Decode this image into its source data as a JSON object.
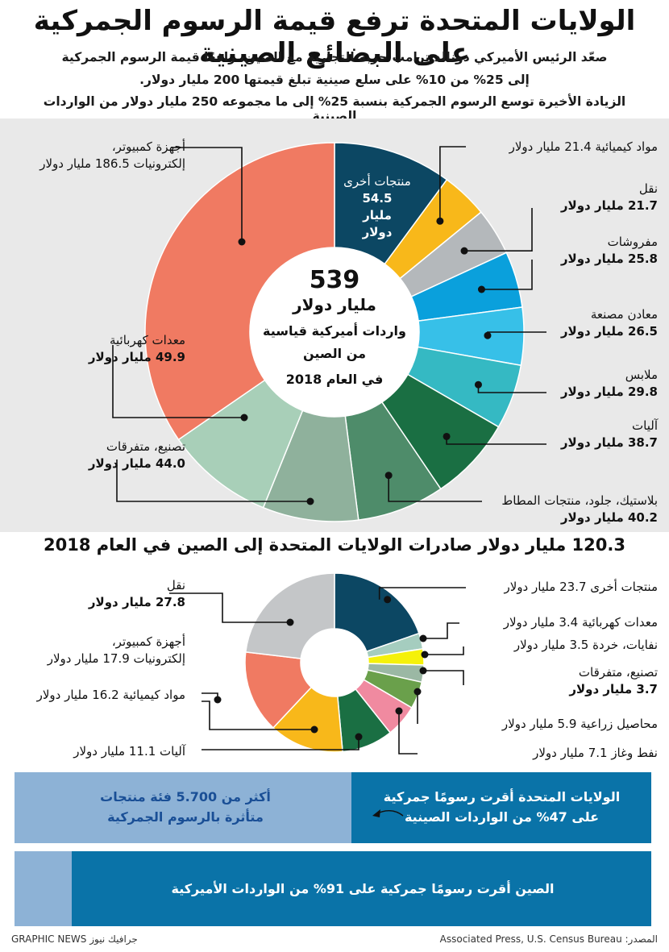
{
  "title": "الولايات المتحدة ترفع قيمة الرسوم الجمركية على البضائع الصينية",
  "subtitle_1": "صعّد الرئيس الأميركي دونالد ترامب حربه التجارية مع الصين، رافعًا قيمة الرسوم الجمركية",
  "subtitle_2": "إلى 25% من 10% على سلع صينية تبلغ قيمتها 200 مليار دولار.",
  "subtitle_3": "الزيادة الأخيرة توسع الرسوم الجمركية بنسبة 25% إلى ما مجموعه 250 مليار دولار من الواردات الصينية",
  "imports_center": {
    "value": "539",
    "unit": "مليار دولار",
    "line1": "واردات أميركية قياسية",
    "line2": "من الصين",
    "line3": "في العام 2018"
  },
  "exports_title": "120.3 مليار دولار صادرات الولايات المتحدة إلى الصين في العام 2018",
  "imports_labels": {
    "other_name": "منتجات أخرى",
    "other_value": "54.5",
    "other_unit": "مليار",
    "other_unit2": "دولار",
    "chemicals_line": "مواد كيميائية 21.4 مليار دولار",
    "transport_name": "نقل",
    "transport_value": "21.7 مليار دولار",
    "furniture_name": "مفروشات",
    "furniture_value": "25.8 مليار دولار",
    "metals_name": "معادن مصنعة",
    "metals_value": "26.5 مليار دولار",
    "clothing_name": "ملابس",
    "clothing_value": "29.8 مليار دولار",
    "machinery_name": "آليات",
    "machinery_value": "38.7 مليار دولار",
    "plastics_name": "بلاستيك، جلود، منتجات المطاط",
    "plastics_value": "40.2 مليار دولار",
    "computers_name1": "أجهزة كمبيوتر،",
    "computers_line2": "إلكترونيات 186.5 مليار دولار",
    "electrical_name": "معدات كهربائية",
    "electrical_value": "49.9 مليار دولار",
    "manufacturing_name": "تصنيع، متفرقات",
    "manufacturing_value": "44.0 مليار دولار"
  },
  "exports_labels": {
    "other_line": "منتجات أخرى 23.7 مليار دولار",
    "electrical_line": "معدات كهربائية 3.4 مليار دولار",
    "waste_line": "نفايات، خردة 3.5 مليار دولار",
    "manufacturing_name": "تصنيع، متفرقات",
    "manufacturing_value": "3.7 مليار دولار",
    "agri_line": "محاصيل زراعية 5.9 مليار دولار",
    "oil_line": "نفط وغاز 7.1 مليار دولار",
    "transport_name": "نقل",
    "transport_value": "27.8 مليار دولار",
    "computers_name1": "أجهزة كمبيوتر،",
    "computers_line2": "إلكترونيات 17.9 مليار دولار",
    "chemicals_line": "مواد كيميائية 16.2 مليار دولار",
    "machinery_line": "آليات 11.1 مليار دولار"
  },
  "bar1": {
    "dark_line1": "الولايات المتحدة أقرت رسومًا جمركية",
    "dark_line2": "على 47% من الواردات الصينية",
    "light_line1": "أكثر من 5.700 فئة منتجات",
    "light_line2": "متأثرة بالرسوم الجمركية",
    "share": 0.47
  },
  "bar2": {
    "text": "الصين أقرت رسومًا جمركية على 91% من الواردات الأميركية",
    "share": 0.91
  },
  "footer": {
    "source": "المصدر: Associated Press, U.S. Census Bureau",
    "credit": "GRAPHIC NEWS جرافيك نيوز"
  },
  "colors": {
    "navy": "#0c4763",
    "gold": "#f8b81a",
    "grey": "#b4b8bb",
    "blue": "#0aa0dc",
    "sky": "#37c0e8",
    "teal": "#35b9c3",
    "green": "#1a6f43",
    "sage": "#7bab90",
    "salmon": "#f07a62",
    "pale": "#a8cfb8",
    "mint": "#9bb8a4",
    "yellow": "#f5f10a",
    "agri": "#6aa04b",
    "oil": "#f08aa0",
    "grey_ex": "#c4c6c8",
    "light_teal": "#a5cdbf"
  },
  "chart_data": [
    {
      "type": "pie",
      "title": "539 مليار دولار واردات أميركية قياسية من الصين في العام 2018",
      "unit": "مليار دولار",
      "categories": [
        "منتجات أخرى",
        "مواد كيميائية",
        "نقل",
        "مفروشات",
        "معادن مصنعة",
        "ملابس",
        "آليات",
        "بلاستيك، جلود، منتجات المطاط",
        "تصنيع، متفرقات",
        "معدات كهربائية",
        "أجهزة كمبيوتر، إلكترونيات"
      ],
      "values": [
        54.5,
        21.4,
        21.7,
        25.8,
        26.5,
        29.8,
        38.7,
        40.2,
        44.0,
        49.9,
        186.5
      ],
      "colors": [
        "#0c4763",
        "#f8b81a",
        "#b4b8bb",
        "#0aa0dc",
        "#37c0e8",
        "#35b9c3",
        "#1a6f43",
        "#4e8c6a",
        "#8fb19c",
        "#a8cfb8",
        "#f07a62"
      ]
    },
    {
      "type": "pie",
      "title": "120.3 مليار دولار صادرات الولايات المتحدة إلى الصين في العام 2018",
      "unit": "مليار دولار",
      "categories": [
        "منتجات أخرى",
        "معدات كهربائية",
        "نفايات، خردة",
        "تصنيع، متفرقات",
        "محاصيل زراعية",
        "نفط وغاز",
        "آليات",
        "مواد كيميائية",
        "أجهزة كمبيوتر، إلكترونيات",
        "نقل"
      ],
      "values": [
        23.7,
        3.4,
        3.5,
        3.7,
        5.9,
        7.1,
        11.1,
        16.2,
        17.9,
        27.8
      ],
      "colors": [
        "#0c4763",
        "#a5cdbf",
        "#f5f10a",
        "#9bb8a4",
        "#6aa04b",
        "#f08aa0",
        "#1a6f43",
        "#f8b81a",
        "#f07a62",
        "#c4c6c8"
      ]
    }
  ]
}
